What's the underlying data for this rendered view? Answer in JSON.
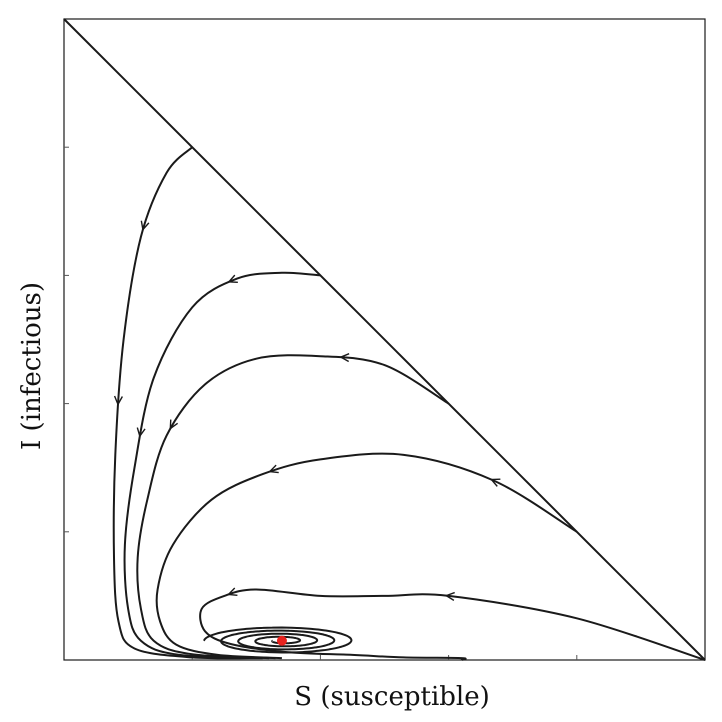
{
  "chart_data": {
    "type": "line",
    "title": "",
    "xlabel": "S (susceptible)",
    "ylabel": "I (infectious)",
    "xlim": [
      0,
      1
    ],
    "ylim": [
      0,
      1
    ],
    "xticks": [
      0,
      0.2,
      0.4,
      0.6,
      0.8,
      1
    ],
    "yticks": [
      0,
      0.2,
      0.4,
      0.6,
      0.8,
      1
    ],
    "tick_labels_shown": false,
    "grid": false,
    "boundary_line": {
      "from": [
        0,
        1
      ],
      "to": [
        1,
        0
      ]
    },
    "equilibrium": {
      "s": 0.34,
      "i": 0.03,
      "color": "#e8231f"
    },
    "line_color": "#1a1a1a",
    "series": [
      {
        "start": [
          0.2,
          0.8
        ],
        "points": [
          [
            0.2,
            0.8
          ],
          [
            0.16,
            0.76
          ],
          [
            0.12,
            0.66
          ],
          [
            0.093,
            0.5
          ],
          [
            0.08,
            0.32
          ],
          [
            0.078,
            0.16
          ],
          [
            0.085,
            0.06
          ],
          [
            0.11,
            0.018
          ],
          [
            0.2,
            0.004
          ],
          [
            0.31,
            0.003
          ]
        ],
        "arrows": [
          0.15,
          0.42
        ]
      },
      {
        "start": [
          0.4,
          0.6
        ],
        "points": [
          [
            0.4,
            0.6
          ],
          [
            0.34,
            0.604
          ],
          [
            0.27,
            0.595
          ],
          [
            0.2,
            0.55
          ],
          [
            0.14,
            0.44
          ],
          [
            0.11,
            0.3
          ],
          [
            0.095,
            0.18
          ],
          [
            0.1,
            0.08
          ],
          [
            0.12,
            0.03
          ],
          [
            0.18,
            0.008
          ],
          [
            0.32,
            0.003
          ]
        ],
        "arrows": [
          0.15,
          0.45
        ]
      },
      {
        "start": [
          0.6,
          0.4
        ],
        "points": [
          [
            0.6,
            0.4
          ],
          [
            0.5,
            0.46
          ],
          [
            0.4,
            0.474
          ],
          [
            0.3,
            0.47
          ],
          [
            0.22,
            0.43
          ],
          [
            0.16,
            0.35
          ],
          [
            0.13,
            0.25
          ],
          [
            0.115,
            0.16
          ],
          [
            0.12,
            0.08
          ],
          [
            0.14,
            0.03
          ],
          [
            0.2,
            0.009
          ],
          [
            0.33,
            0.003
          ]
        ],
        "arrows": [
          0.18,
          0.48
        ]
      },
      {
        "start": [
          0.8,
          0.2
        ],
        "points": [
          [
            0.8,
            0.2
          ],
          [
            0.67,
            0.28
          ],
          [
            0.53,
            0.32
          ],
          [
            0.4,
            0.313
          ],
          [
            0.31,
            0.29
          ],
          [
            0.23,
            0.25
          ],
          [
            0.17,
            0.18
          ],
          [
            0.146,
            0.11
          ],
          [
            0.15,
            0.06
          ],
          [
            0.175,
            0.024
          ],
          [
            0.24,
            0.008
          ],
          [
            0.34,
            0.003
          ]
        ],
        "arrows": [
          0.15,
          0.49
        ]
      },
      {
        "start": [
          1.0,
          0.0
        ],
        "points": [
          [
            1.0,
            0.0
          ],
          [
            0.8,
            0.065
          ],
          [
            0.6,
            0.1
          ],
          [
            0.5,
            0.1
          ],
          [
            0.4,
            0.1
          ],
          [
            0.3,
            0.11
          ],
          [
            0.25,
            0.1
          ],
          [
            0.215,
            0.08
          ],
          [
            0.22,
            0.045
          ],
          [
            0.26,
            0.025
          ],
          [
            0.35,
            0.012
          ],
          [
            0.45,
            0.008
          ],
          [
            0.53,
            0.004
          ],
          [
            0.62,
            0.003
          ],
          [
            0.62,
            0.0
          ]
        ],
        "arrows": [
          0.33,
          0.6
        ]
      }
    ],
    "spiral": {
      "center": [
        0.34,
        0.03
      ],
      "loops": 4
    }
  }
}
